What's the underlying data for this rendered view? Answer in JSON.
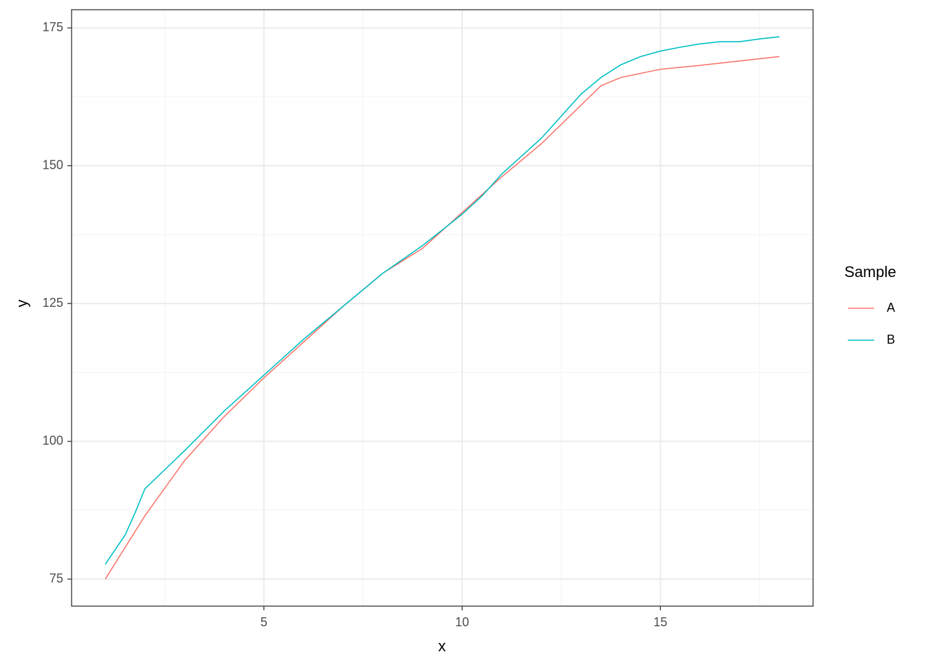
{
  "chart_data": {
    "type": "line",
    "xlabel": "x",
    "ylabel": "y",
    "xlim": [
      0.15,
      18.85
    ],
    "ylim": [
      70.1,
      178.3
    ],
    "xticks": [
      5,
      10,
      15
    ],
    "yticks": [
      75,
      100,
      125,
      150,
      175
    ],
    "xminor": [
      2.5,
      7.5,
      12.5,
      17.5
    ],
    "yminor": [
      87.5,
      112.5,
      137.5,
      162.5
    ],
    "grid": true,
    "legend_title": "Sample",
    "series": [
      {
        "name": "A",
        "color": "#f8766d",
        "x": [
          1,
          2,
          3,
          4,
          5,
          6,
          7,
          8,
          9,
          10,
          11,
          12,
          13,
          13.5,
          14,
          15,
          16,
          17,
          18
        ],
        "values": [
          75,
          86.5,
          96.5,
          104.5,
          111.5,
          118,
          124.5,
          130.5,
          135,
          141.5,
          148,
          154,
          161,
          164.5,
          166,
          167.5,
          168.2,
          169,
          169.8
        ]
      },
      {
        "name": "B",
        "color": "#00bfc4",
        "x": [
          1,
          1.5,
          1.75,
          2,
          3,
          4,
          5,
          6,
          7,
          8,
          9,
          10,
          10.5,
          11,
          12,
          13,
          13.5,
          14,
          14.5,
          15,
          15.5,
          16,
          16.5,
          17,
          17.5,
          18
        ],
        "values": [
          77.7,
          83,
          87,
          91.4,
          98.3,
          105.5,
          112,
          118.5,
          124.5,
          130.5,
          135.5,
          141.2,
          144.5,
          148.5,
          155,
          163,
          166,
          168.3,
          169.8,
          170.8,
          171.5,
          172.1,
          172.5,
          172.5,
          173,
          173.4
        ]
      }
    ]
  }
}
